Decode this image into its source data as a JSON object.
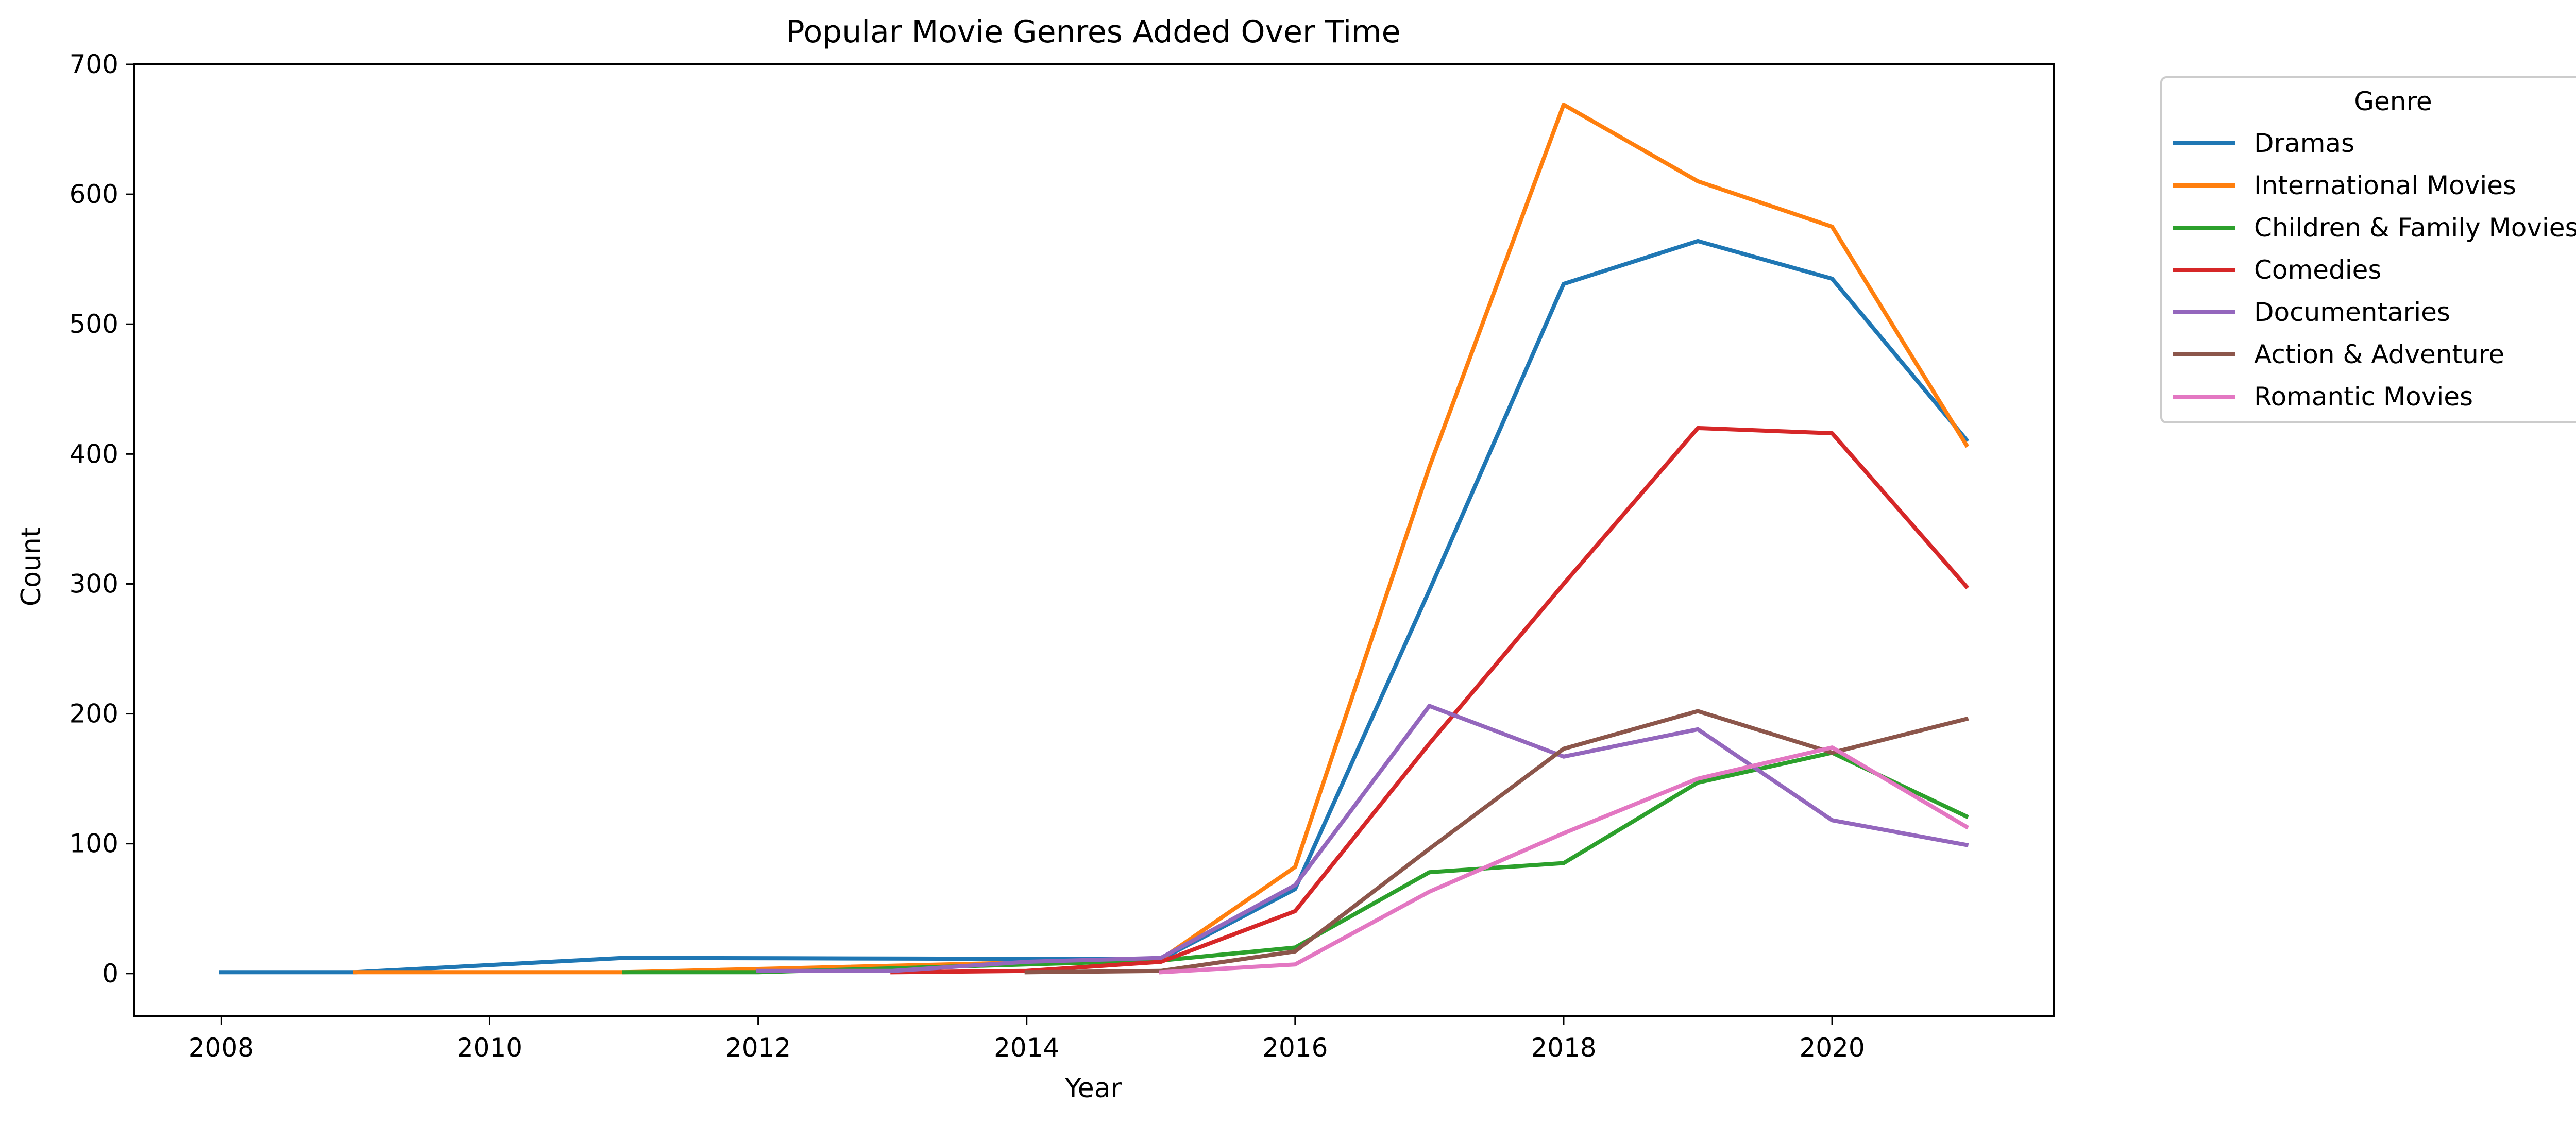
{
  "chart_data": {
    "type": "line",
    "title": "Popular Movie Genres Added Over Time",
    "xlabel": "Year",
    "ylabel": "Count",
    "xlim": [
      2007.35,
      2021.65
    ],
    "ylim": [
      -33,
      700
    ],
    "xticks": [
      2008,
      2010,
      2012,
      2014,
      2016,
      2018,
      2020
    ],
    "yticks": [
      0,
      100,
      200,
      300,
      400,
      500,
      600,
      700
    ],
    "grid": false,
    "legend": {
      "title": "Genre",
      "placement": "outside top-right"
    },
    "series": [
      {
        "name": "Dramas",
        "color": "#1f77b4",
        "points": [
          [
            2008,
            1
          ],
          [
            2009,
            1
          ],
          [
            2011,
            12
          ],
          [
            2015,
            11
          ],
          [
            2016,
            65
          ],
          [
            2017,
            295
          ],
          [
            2018,
            531
          ],
          [
            2019,
            564
          ],
          [
            2020,
            535
          ],
          [
            2021,
            411
          ]
        ]
      },
      {
        "name": "International Movies",
        "color": "#ff7f0e",
        "points": [
          [
            2009,
            1
          ],
          [
            2011,
            1
          ],
          [
            2015,
            11
          ],
          [
            2016,
            82
          ],
          [
            2017,
            390
          ],
          [
            2018,
            669
          ],
          [
            2019,
            610
          ],
          [
            2020,
            575
          ],
          [
            2021,
            407
          ]
        ]
      },
      {
        "name": "Children & Family Movies",
        "color": "#2ca02c",
        "points": [
          [
            2011,
            1
          ],
          [
            2012,
            1
          ],
          [
            2015,
            10
          ],
          [
            2016,
            20
          ],
          [
            2017,
            78
          ],
          [
            2018,
            85
          ],
          [
            2019,
            147
          ],
          [
            2020,
            170
          ],
          [
            2021,
            121
          ]
        ]
      },
      {
        "name": "Comedies",
        "color": "#d62728",
        "points": [
          [
            2013,
            1
          ],
          [
            2014,
            2
          ],
          [
            2015,
            9
          ],
          [
            2016,
            48
          ],
          [
            2017,
            177
          ],
          [
            2018,
            300
          ],
          [
            2019,
            420
          ],
          [
            2020,
            416
          ],
          [
            2021,
            298
          ]
        ]
      },
      {
        "name": "Documentaries",
        "color": "#9467bd",
        "points": [
          [
            2012,
            2
          ],
          [
            2013,
            2
          ],
          [
            2014,
            9
          ],
          [
            2015,
            12
          ],
          [
            2016,
            68
          ],
          [
            2017,
            206
          ],
          [
            2018,
            167
          ],
          [
            2019,
            188
          ],
          [
            2020,
            118
          ],
          [
            2021,
            99
          ]
        ]
      },
      {
        "name": "Action & Adventure",
        "color": "#8c564b",
        "points": [
          [
            2014,
            1
          ],
          [
            2015,
            2
          ],
          [
            2016,
            17
          ],
          [
            2017,
            96
          ],
          [
            2018,
            173
          ],
          [
            2019,
            202
          ],
          [
            2020,
            170
          ],
          [
            2021,
            196
          ]
        ]
      },
      {
        "name": "Romantic Movies",
        "color": "#e377c2",
        "points": [
          [
            2015,
            1
          ],
          [
            2016,
            7
          ],
          [
            2017,
            63
          ],
          [
            2018,
            108
          ],
          [
            2019,
            150
          ],
          [
            2020,
            174
          ],
          [
            2021,
            113
          ]
        ]
      }
    ]
  }
}
